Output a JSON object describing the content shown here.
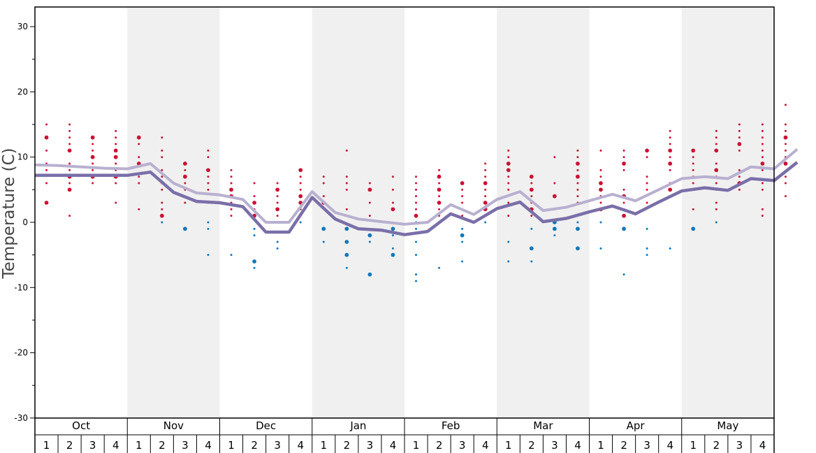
{
  "chart_data": {
    "type": "scatter",
    "title": "",
    "ylabel": "Temperature (C)",
    "ylim": [
      -30,
      33
    ],
    "yticks": [
      -30,
      -20,
      -10,
      0,
      10,
      20,
      30
    ],
    "months": [
      "Oct",
      "Nov",
      "Dec",
      "Jan",
      "Feb",
      "Mar",
      "Apr",
      "May"
    ],
    "weeks": [
      "1",
      "2",
      "3",
      "4"
    ],
    "shaded_months": [
      "Nov",
      "Jan",
      "Mar",
      "May"
    ],
    "colors": {
      "warm_points": "#cc1133",
      "cold_points": "#1177bb",
      "high_line": "#b8b0d0",
      "low_line": "#7a6fa8",
      "shade": "#f0f0f0"
    },
    "series": [
      {
        "values": [
          8.8,
          8.7,
          8.5,
          8.3,
          8.2,
          9.0,
          6.0,
          4.5,
          4.2,
          3.5,
          0.0,
          0.0,
          4.7,
          1.5,
          0.5,
          0.1,
          -0.3,
          0.0,
          2.7,
          1.2,
          3.5,
          4.7,
          1.8,
          2.3,
          3.3,
          4.3,
          3.3,
          5.0,
          6.7,
          7.0,
          6.7,
          8.5,
          8.2,
          11.2
        ]
      },
      {
        "values": [
          7.2,
          7.2,
          7.2,
          7.2,
          7.2,
          7.7,
          4.6,
          3.2,
          3.0,
          2.4,
          -1.5,
          -1.5,
          3.8,
          0.5,
          -1.0,
          -1.2,
          -1.9,
          -1.4,
          1.3,
          0.0,
          2.1,
          3.1,
          0.1,
          0.6,
          1.6,
          2.5,
          1.3,
          3.1,
          4.8,
          5.3,
          4.9,
          6.7,
          6.4,
          9.2
        ]
      }
    ],
    "points": [
      {
        "x": 0,
        "t": [
          15,
          11,
          9,
          8,
          6
        ],
        "b": [
          13,
          3
        ]
      },
      {
        "x": 1,
        "t": [
          15,
          14,
          13,
          12,
          9,
          8,
          6,
          1
        ],
        "b": [
          11,
          7,
          5
        ]
      },
      {
        "x": 2,
        "t": [
          12,
          11,
          9,
          8,
          6
        ],
        "b": [
          13,
          10,
          7
        ]
      },
      {
        "x": 3,
        "t": [
          14,
          13,
          12,
          9,
          8,
          6,
          3
        ],
        "b": [
          11,
          10,
          7
        ]
      },
      {
        "x": 4,
        "t": [
          12,
          10,
          7,
          6,
          2
        ],
        "b": [
          13,
          9
        ]
      },
      {
        "x": 5,
        "t": [
          13,
          11,
          10,
          8,
          7,
          6,
          5,
          3,
          2
        ],
        "b": [
          1
        ],
        "c": [
          0
        ]
      },
      {
        "x": 6,
        "t": [
          8,
          6,
          5,
          3
        ],
        "b": [
          9,
          7
        ],
        "C": [
          -1
        ]
      },
      {
        "x": 7,
        "t": [
          11,
          10,
          7,
          6,
          5,
          3
        ],
        "b": [
          8
        ],
        "c": [
          0,
          -1,
          -5
        ]
      },
      {
        "x": 8,
        "t": [
          8,
          7,
          6,
          3,
          2,
          1
        ],
        "b": [
          5,
          4
        ],
        "c": [
          -5
        ]
      },
      {
        "x": 9,
        "t": [
          6,
          4,
          2
        ],
        "b": [
          3,
          1
        ],
        "c": [
          -1,
          -2,
          -7
        ],
        "C": [
          -6
        ]
      },
      {
        "x": 10,
        "t": [
          6,
          4,
          3,
          1
        ],
        "b": [
          5,
          2
        ],
        "c": [
          -3,
          -4
        ]
      },
      {
        "x": 11,
        "t": [
          7,
          6,
          5,
          2,
          1
        ],
        "b": [
          8,
          4,
          3
        ],
        "c": [
          0
        ]
      },
      {
        "x": 12,
        "t": [
          7,
          6,
          4
        ],
        "b": [
          3
        ],
        "c": [
          -3
        ],
        "C": [
          -1
        ]
      },
      {
        "x": 13,
        "t": [
          11,
          7,
          6,
          5,
          2
        ],
        "C": [
          -1,
          -3,
          -5
        ],
        "c": [
          -7
        ]
      },
      {
        "x": 14,
        "t": [
          6,
          5,
          3,
          1
        ],
        "b": [
          5
        ],
        "c": [
          -3
        ],
        "C": [
          -2,
          -8
        ]
      },
      {
        "x": 15,
        "t": [
          7,
          5,
          3
        ],
        "b": [
          2
        ],
        "c": [
          -2,
          -4
        ],
        "C": [
          -1,
          -5
        ]
      },
      {
        "x": 16,
        "t": [
          7,
          6,
          5,
          4,
          3,
          2
        ],
        "b": [
          1
        ],
        "c": [
          0,
          -1,
          -3,
          -5,
          -8,
          -9
        ]
      },
      {
        "x": 17,
        "t": [
          8,
          6,
          4,
          2,
          1
        ],
        "b": [
          7,
          5,
          3
        ],
        "c": [
          -7
        ]
      },
      {
        "x": 18,
        "t": [
          5,
          4,
          3,
          1
        ],
        "b": [
          6
        ],
        "c": [
          -1,
          -3,
          -6
        ],
        "C": [
          -2
        ]
      },
      {
        "x": 19,
        "t": [
          9,
          8,
          7,
          5,
          4
        ],
        "b": [
          6,
          3,
          2
        ],
        "c": [
          0
        ]
      },
      {
        "x": 20,
        "t": [
          11,
          10,
          7,
          6,
          5,
          3,
          1
        ],
        "b": [
          9,
          8
        ],
        "c": [
          -3,
          -6
        ]
      },
      {
        "x": 21,
        "t": [
          6,
          4,
          3,
          1
        ],
        "b": [
          7,
          5,
          2
        ],
        "c": [
          -1,
          -6
        ],
        "C": [
          -4
        ]
      },
      {
        "x": 22,
        "t": [
          10,
          6,
          2
        ],
        "b": [
          4
        ],
        "c": [
          -2
        ],
        "C": [
          0,
          -1
        ]
      },
      {
        "x": 23,
        "t": [
          11,
          10,
          8,
          6,
          5,
          4,
          3
        ],
        "b": [
          9,
          7
        ],
        "c": [
          0
        ],
        "C": [
          -1,
          -4
        ]
      },
      {
        "x": 24,
        "t": [
          11,
          8,
          7,
          4,
          3
        ],
        "b": [
          6,
          5,
          2
        ],
        "c": [
          0,
          -4
        ]
      },
      {
        "x": 25,
        "t": [
          11,
          10,
          8,
          5,
          3,
          2
        ],
        "b": [
          9,
          4,
          1
        ],
        "c": [
          -8
        ],
        "C": [
          -1
        ]
      },
      {
        "x": 26,
        "t": [
          10,
          7,
          6,
          5,
          3
        ],
        "b": [
          11
        ],
        "c": [
          -1,
          -4,
          -5
        ]
      },
      {
        "x": 27,
        "t": [
          14,
          13,
          12,
          10,
          8,
          6
        ],
        "b": [
          11,
          9,
          5
        ],
        "c": [
          -4
        ]
      },
      {
        "x": 28,
        "t": [
          10,
          9,
          8,
          7,
          6,
          5,
          2
        ],
        "b": [
          11
        ],
        "C": [
          -1
        ]
      },
      {
        "x": 29,
        "t": [
          14,
          13,
          12,
          9,
          7,
          6,
          5,
          3,
          2
        ],
        "b": [
          11,
          8
        ],
        "c": [
          0
        ]
      },
      {
        "x": 30,
        "t": [
          15,
          14,
          13,
          11,
          8,
          7,
          5
        ],
        "b": [
          12,
          6
        ]
      },
      {
        "x": 31,
        "t": [
          15,
          14,
          13,
          12,
          11,
          10,
          8,
          6,
          5,
          2,
          1
        ],
        "b": [
          9
        ]
      },
      {
        "x": 32,
        "t": [
          18,
          15,
          14,
          12,
          11,
          10,
          7,
          6,
          4
        ],
        "b": [
          13,
          9
        ]
      }
    ]
  }
}
